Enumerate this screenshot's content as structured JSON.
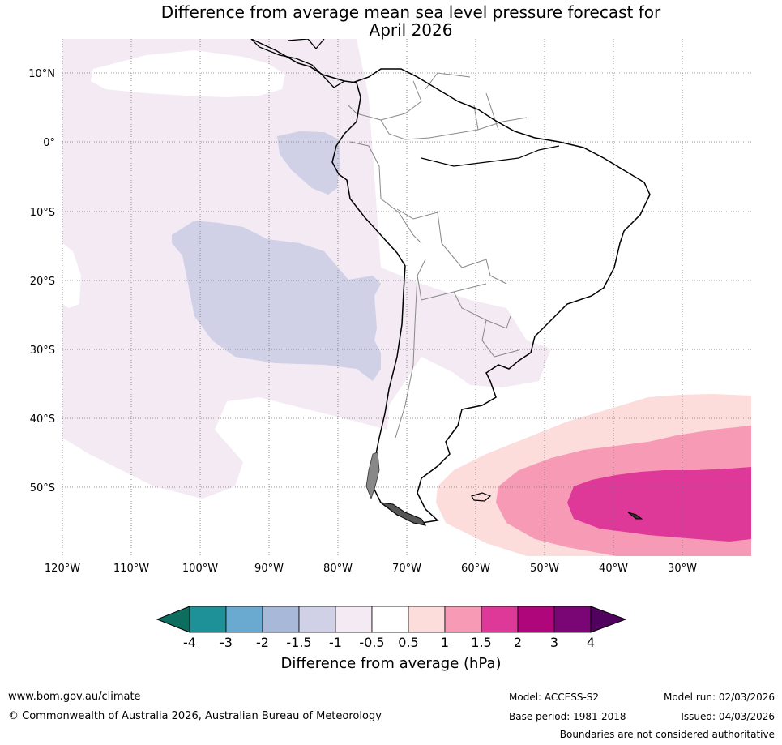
{
  "title": {
    "line1": "Difference from average mean sea level pressure forecast for",
    "line2": "April 2026"
  },
  "map": {
    "region": "South America",
    "lat_labels": [
      "10°N",
      "0°",
      "10°S",
      "20°S",
      "30°S",
      "40°S",
      "50°S"
    ],
    "lon_labels": [
      "120°W",
      "110°W",
      "100°W",
      "90°W",
      "80°W",
      "70°W",
      "60°W",
      "50°W",
      "40°W",
      "30°W"
    ]
  },
  "colorbar": {
    "ticks": [
      "-4",
      "-3",
      "-2",
      "-1.5",
      "-1",
      "-0.5",
      "0.5",
      "1",
      "1.5",
      "2",
      "3",
      "4"
    ],
    "colors": [
      "#1e9098",
      "#6aa9d0",
      "#a8b8d8",
      "#d0d0e6",
      "#f3eaf3",
      "#ffffff",
      "#fddcdc",
      "#f79ab5",
      "#de3898",
      "#b0067c",
      "#7a0676"
    ],
    "under_color": "#0d6e60",
    "over_color": "#50025e",
    "label": "Difference from average (hPa)"
  },
  "footer": {
    "website": "www.bom.gov.au/climate",
    "copyright": "© Commonwealth of Australia 2026, Australian Bureau of Meteorology",
    "model": "Model: ACCESS-S2",
    "base_period": "Base period: 1981-2018",
    "model_run": "Model run: 02/03/2026",
    "issued": "Issued: 04/03/2026",
    "disclaimer": "Boundaries are not considered authoritative"
  }
}
